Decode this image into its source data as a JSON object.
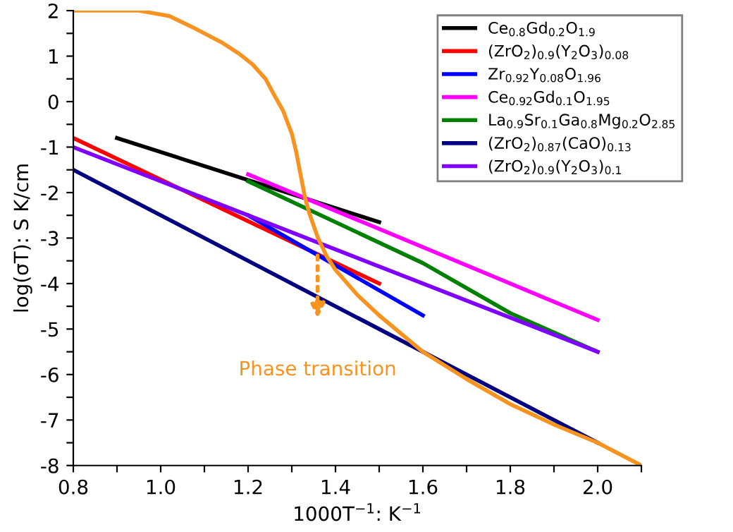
{
  "chart_data": {
    "type": "line",
    "xlabel": "1000T$^{−1}$: K$^{−1}$",
    "ylabel": "log(σT): S K/cm",
    "xlim": [
      0.8,
      2.1
    ],
    "ylim": [
      -8,
      2
    ],
    "xticks": [
      0.8,
      {
        "value": 0.9,
        "label": null
      },
      {
        "value": 1.0,
        "label": "1.0"
      },
      {
        "value": 1.1,
        "label": null
      },
      1.2,
      {
        "value": 1.3,
        "label": null
      },
      1.4,
      {
        "value": 1.5,
        "label": null
      },
      1.6,
      {
        "value": 1.7,
        "label": null
      },
      1.8,
      {
        "value": 1.9,
        "label": null
      },
      {
        "value": 2.0,
        "label": "2.0"
      },
      {
        "value": 2.1,
        "label": null
      }
    ],
    "yticks": [
      -8,
      {
        "value": -7.5,
        "label": null
      },
      -7,
      {
        "value": -6.5,
        "label": null
      },
      -6,
      {
        "value": -5.5,
        "label": null
      },
      -5,
      {
        "value": -4.5,
        "label": null
      },
      -4,
      {
        "value": -3.5,
        "label": null
      },
      -3,
      {
        "value": -2.5,
        "label": null
      },
      -2,
      {
        "value": -1.5,
        "label": null
      },
      -1,
      {
        "value": -0.5,
        "label": null
      },
      0,
      {
        "value": 0.5,
        "label": null
      },
      1,
      {
        "value": 1.5,
        "label": null
      },
      2
    ],
    "legend": "top right",
    "grid": false,
    "marker": "none",
    "line_style": "solid",
    "series": [
      {
        "name": "Ce$_{0.8}$Gd$_{0.2}$O$_{1.9}$",
        "color": "#000000",
        "x": [
          0.9,
          1.5
        ],
        "values": [
          -0.8,
          -2.65
        ]
      },
      {
        "name": "(ZrO$_{2}$)$_{0.9}$(Y$_{2}$O$_{3}$)$_{0.08}$",
        "color": "#ff0000",
        "x": [
          0.8,
          1.5
        ],
        "values": [
          -0.8,
          -4.0
        ]
      },
      {
        "name": "Zr$_{0.92}$Y$_{0.08}$O$_{1.96}$",
        "color": "#0000ff",
        "x": [
          1.2,
          1.6
        ],
        "values": [
          -2.5,
          -4.7
        ]
      },
      {
        "name": "Ce$_{0.92}$Gd$_{0.1}$O$_{1.95}$",
        "color": "#ff00ff",
        "x": [
          1.2,
          2.0
        ],
        "values": [
          -1.6,
          -4.8
        ]
      },
      {
        "name": "La$_{0.9}$Sr$_{0.1}$Ga$_{0.8}$Mg$_{0.2}$O$_{2.85}$",
        "color": "#008000",
        "x": [
          1.2,
          1.6,
          1.8,
          2.0
        ],
        "values": [
          -1.75,
          -3.55,
          -4.65,
          -5.5
        ]
      },
      {
        "name": "(ZrO$_{2}$)$_{0.87}$(CaO)$_{0.13}$",
        "color": "#000080",
        "x": [
          0.8,
          2.0
        ],
        "values": [
          -1.5,
          -7.5
        ]
      },
      {
        "name": "(ZrO$_{2}$)$_{0.9}$(Y$_{2}$O$_{3}$)$_{0.1}$",
        "color": "#8000ff",
        "x": [
          0.8,
          1.2,
          2.0
        ],
        "values": [
          -1.0,
          -2.5,
          -5.5
        ]
      },
      {
        "color": "#f7931e",
        "x": [
          0.8,
          0.95,
          1.02,
          1.08,
          1.14,
          1.18,
          1.21,
          1.24,
          1.26,
          1.28,
          1.3,
          1.31,
          1.32,
          1.33,
          1.34,
          1.36,
          1.38,
          1.4,
          1.45,
          1.5,
          1.6,
          1.7,
          1.8,
          1.9,
          2.0,
          2.1
        ],
        "values": [
          2.0,
          2.0,
          1.88,
          1.6,
          1.3,
          1.05,
          0.82,
          0.5,
          0.14,
          -0.2,
          -0.7,
          -1.1,
          -1.6,
          -2.1,
          -2.45,
          -3.0,
          -3.4,
          -3.7,
          -4.25,
          -4.7,
          -5.5,
          -6.1,
          -6.65,
          -7.1,
          -7.5,
          -8.0
        ]
      }
    ],
    "annotations": [
      "Phase transition"
    ]
  }
}
